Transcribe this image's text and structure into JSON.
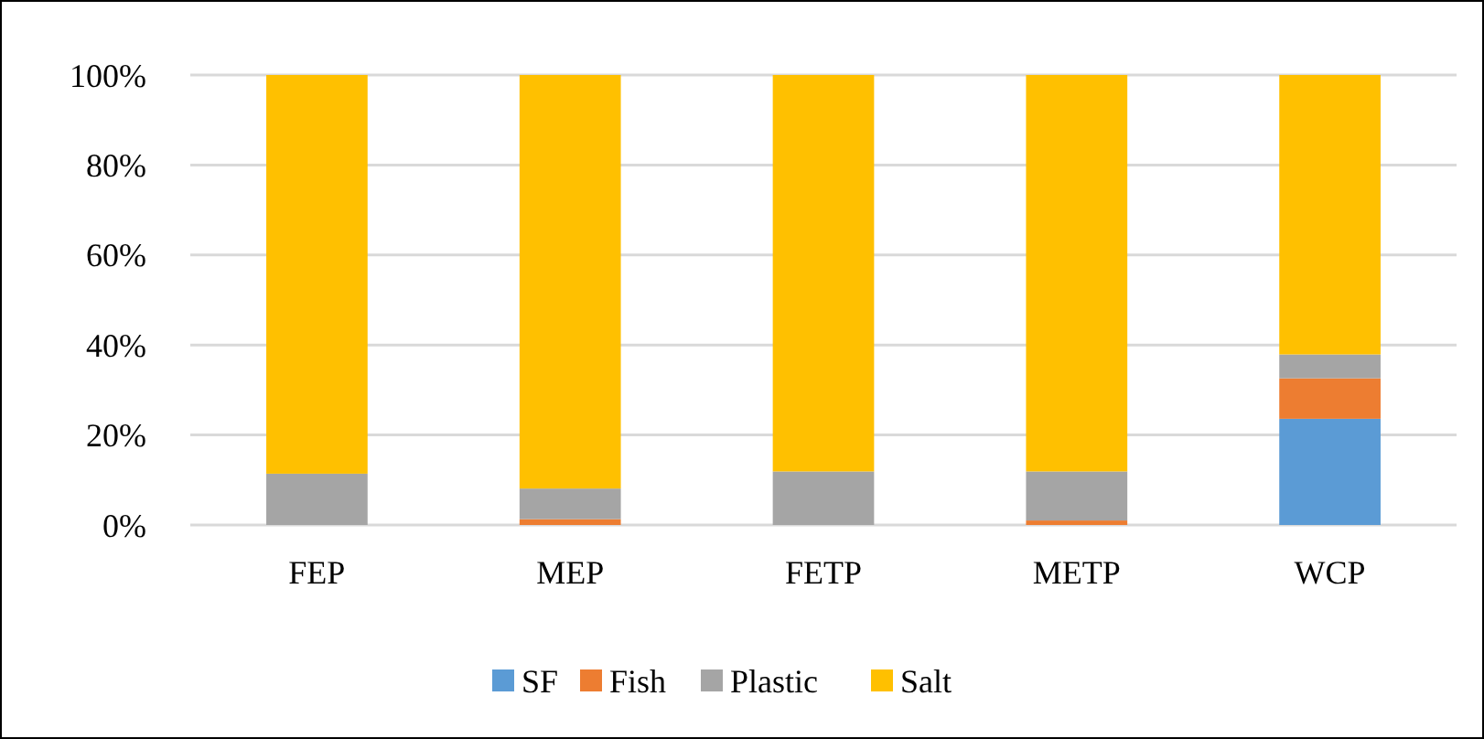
{
  "chart_data": {
    "type": "bar",
    "stacked": true,
    "categories": [
      "FEP",
      "MEP",
      "FETP",
      "METP",
      "WCP"
    ],
    "series": [
      {
        "name": "SF",
        "color": "#5b9bd5",
        "values": [
          0,
          0,
          0,
          0,
          23.6
        ]
      },
      {
        "name": "Fish",
        "color": "#ed7d31",
        "values": [
          0,
          1.3,
          0,
          1,
          9
        ]
      },
      {
        "name": "Plastic",
        "color": "#a5a5a5",
        "values": [
          11.4,
          6.8,
          11.9,
          10.9,
          5.3
        ]
      },
      {
        "name": "Salt",
        "color": "#ffc000",
        "values": [
          88.6,
          91.9,
          88.1,
          88.1,
          62.1
        ]
      }
    ],
    "ylim": [
      0,
      100
    ],
    "yticks": [
      {
        "value": 0,
        "label": "0%"
      },
      {
        "value": 20,
        "label": "20%"
      },
      {
        "value": 40,
        "label": "40%"
      },
      {
        "value": 60,
        "label": "60%"
      },
      {
        "value": 80,
        "label": "80%"
      },
      {
        "value": 100,
        "label": "100%"
      }
    ],
    "grid": "y",
    "legend": "bottom"
  }
}
